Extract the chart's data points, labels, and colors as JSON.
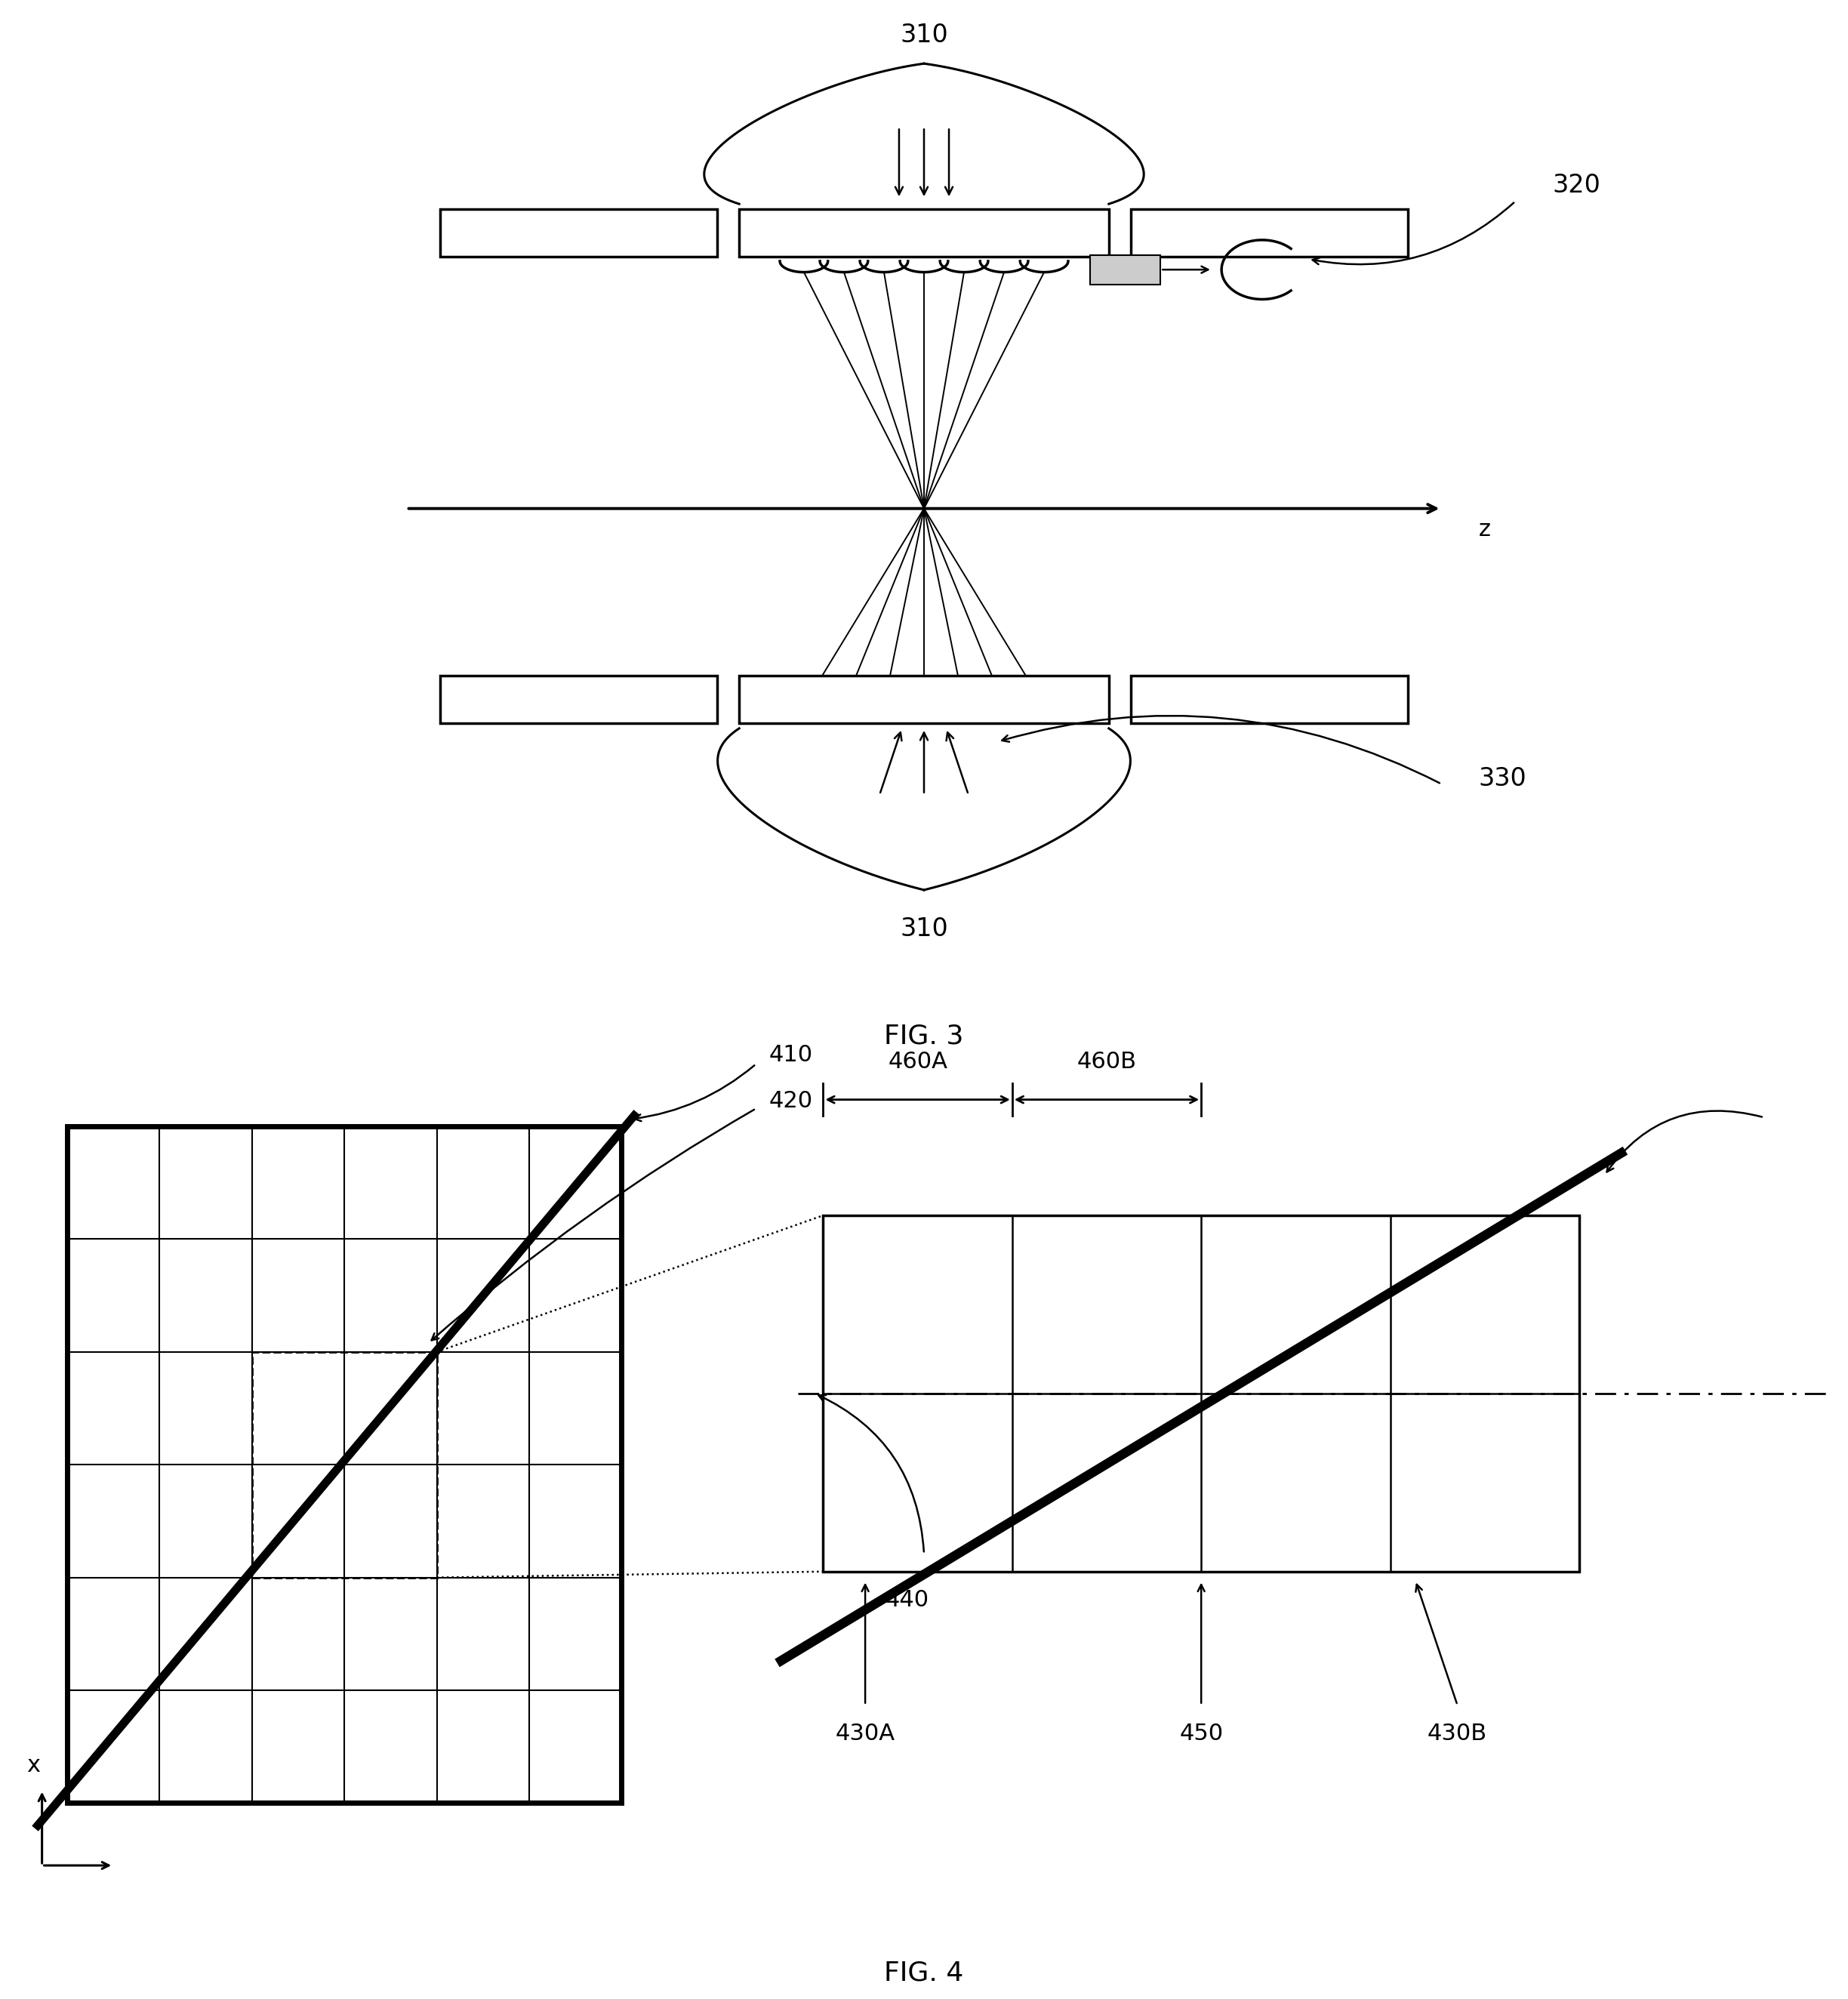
{
  "fig_width": 24.48,
  "fig_height": 26.48,
  "bg_color": "#ffffff",
  "label_310_top": "310",
  "label_310_bottom": "310",
  "label_320": "320",
  "label_330": "330",
  "label_z": "z",
  "fig3_caption": "FIG. 3",
  "fig4_caption": "FIG. 4",
  "label_410": "410",
  "label_420": "420",
  "label_430A": "430A",
  "label_430B": "430B",
  "label_440": "440",
  "label_450": "450",
  "label_460A": "460A",
  "label_460B": "460B",
  "label_x": "x"
}
